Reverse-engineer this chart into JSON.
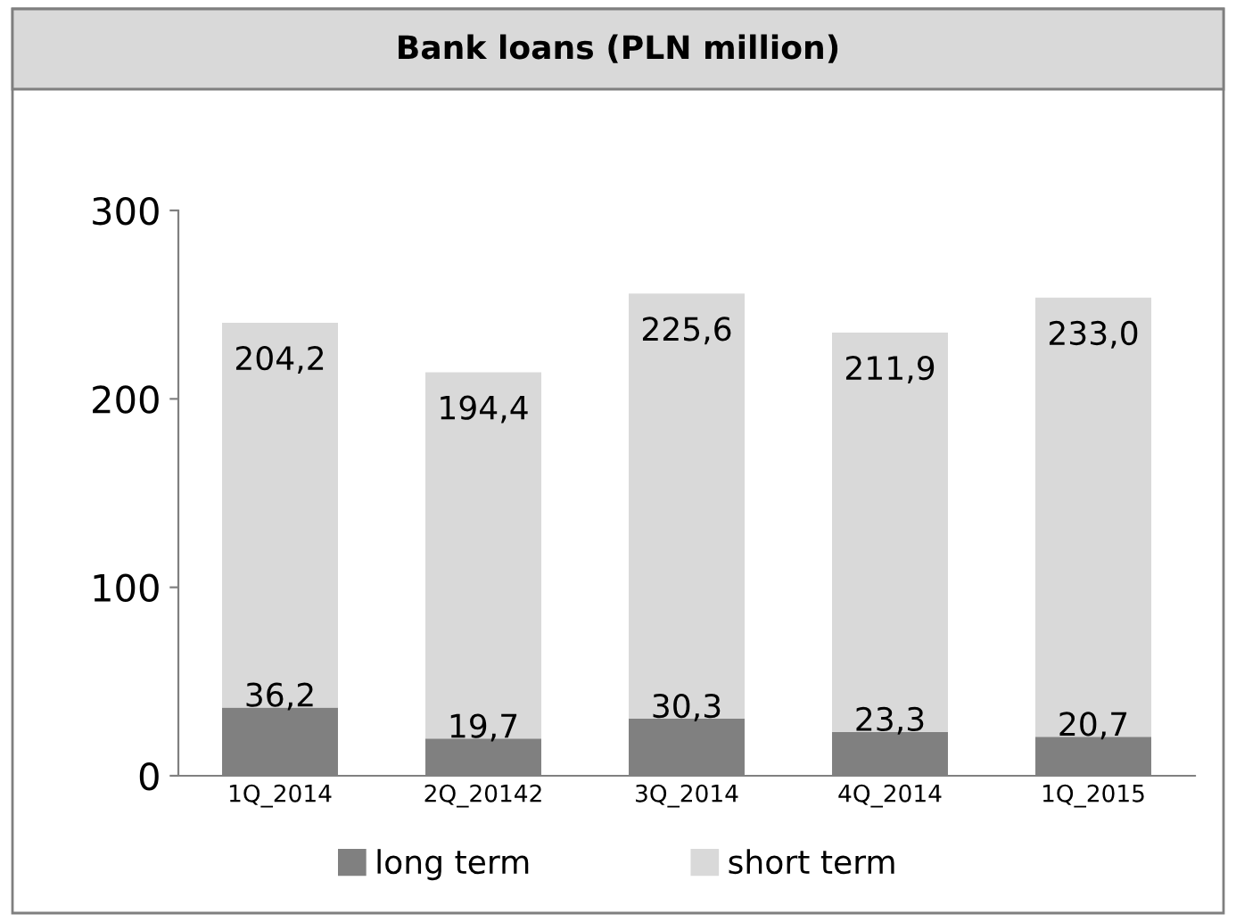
{
  "chart_data": {
    "type": "bar",
    "title": "Bank loans (PLN million)",
    "stacked": true,
    "categories": [
      "1Q_2014",
      "2Q_20142",
      "3Q_2014",
      "4Q_2014",
      "1Q_2015"
    ],
    "series": [
      {
        "name": "long term",
        "color": "#808080",
        "values": [
          36.2,
          19.7,
          30.3,
          23.3,
          20.7
        ],
        "value_labels": [
          "36,2",
          "19,7",
          "30,3",
          "23,3",
          "20,7"
        ]
      },
      {
        "name": "short term",
        "color": "#d9d9d9",
        "values": [
          204.2,
          194.4,
          225.6,
          211.9,
          233.0
        ],
        "value_labels": [
          "204,2",
          "194,4",
          "225,6",
          "211,9",
          "233,0"
        ]
      }
    ],
    "ylim": [
      0,
      300
    ],
    "yticks": [
      0,
      100,
      200,
      300
    ],
    "grid": false,
    "legend": "bottom"
  }
}
